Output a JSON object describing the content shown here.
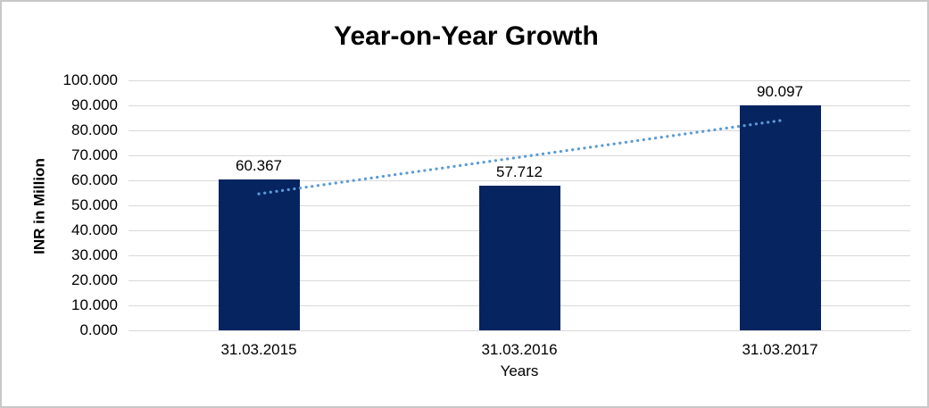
{
  "chart_data": {
    "type": "bar",
    "title": "Year-on-Year Growth",
    "xlabel": "Years",
    "ylabel": "INR in Million",
    "categories": [
      "31.03.2015",
      "31.03.2016",
      "31.03.2017"
    ],
    "series": [
      {
        "name": "INR in Million",
        "values": [
          60.367,
          57.712,
          90.097
        ]
      }
    ],
    "data_labels": [
      "60.367",
      "57.712",
      "90.097"
    ],
    "ylim": [
      0,
      100
    ],
    "ytick_labels": [
      "0.000",
      "10.000",
      "20.000",
      "30.000",
      "40.000",
      "50.000",
      "60.000",
      "70.000",
      "80.000",
      "90.000",
      "100.000"
    ],
    "grid": true,
    "legend_position": "none",
    "trendline": {
      "style": "dotted",
      "start": {
        "category_index": 0,
        "value": 54.6
      },
      "end": {
        "category_index": 2,
        "value": 83.9
      }
    },
    "colors": {
      "bar": "#052460",
      "trendline": "#5b9bd5",
      "gridline": "#d9d9d9",
      "text": "#000000",
      "frame_border": "#c8c8c8",
      "background": "#ffffff"
    }
  }
}
